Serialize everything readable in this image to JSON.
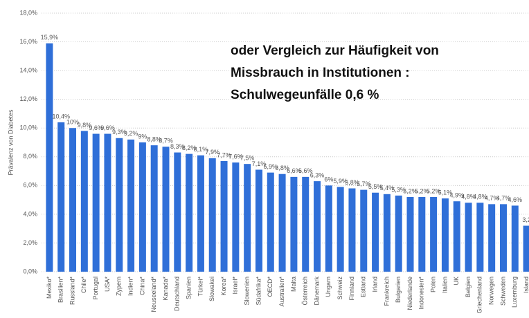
{
  "chart_data": {
    "type": "bar",
    "y_label": "Prävalenz von Diabetes",
    "annotation": [
      "oder Vergleich zur Häufigkeit von",
      "Missbrauch in Institutionen :",
      "Schulwegeunfälle 0,6 %"
    ],
    "categories": [
      "Mexiko*",
      "Brasilien*",
      "Russland*",
      "Chile*",
      "Portugal",
      "USA*",
      "Zypern",
      "Indien*",
      "China*",
      "Neuseeland*",
      "Kanada*",
      "Deutschland",
      "Spanien",
      "Türkei*",
      "Slowakei",
      "Korea*",
      "Israel*",
      "Slowenien",
      "Südafrika*",
      "OECD*",
      "Australien*",
      "Malta",
      "Österreich",
      "Dänemark",
      "Ungarn",
      "Schweiz",
      "Finnland",
      "Estland",
      "Irland",
      "Frankreich",
      "Bulgarien",
      "Niederlande",
      "Indonesien*",
      "Polen",
      "Italien",
      "UK",
      "Belgien",
      "Griechenland",
      "Norwegen",
      "Schweden",
      "Luxemburg",
      "Island"
    ],
    "values": [
      15.9,
      10.4,
      10,
      9.8,
      9.6,
      9.6,
      9.3,
      9.2,
      9,
      8.8,
      8.7,
      8.3,
      8.2,
      8.1,
      7.9,
      7.7,
      7.6,
      7.5,
      7.1,
      6.9,
      6.8,
      6.6,
      6.6,
      6.3,
      6,
      5.9,
      5.8,
      5.7,
      5.5,
      5.4,
      5.3,
      5.2,
      5.2,
      5.2,
      5.1,
      4.9,
      4.8,
      4.8,
      4.7,
      4.7,
      4.6,
      3.2
    ],
    "value_labels": [
      "15,9%",
      "10,4%",
      "10%",
      "9,8%",
      "9,6%",
      "9,6%",
      "9,3%",
      "9,2%",
      "9%",
      "8,8%",
      "8,7%",
      "8,3%",
      "8,2%",
      "8,1%",
      "7,9%",
      "7,7%",
      "7,6%",
      "7,5%",
      "7,1%",
      "6,9%",
      "6,8%",
      "6,6%",
      "6,6%",
      "6,3%",
      "6%",
      "5,9%",
      "5,8%",
      "5,7%",
      "5,5%",
      "5,4%",
      "5,3%",
      "5,2%",
      "5,2%",
      "5,2%",
      "5,1%",
      "4,9%",
      "4,8%",
      "4,8%",
      "4,7%",
      "4,7%",
      "4,6%",
      "3,2"
    ],
    "color": "#2f6fd8",
    "ylim": [
      0,
      18
    ],
    "yticks": [
      {
        "value": 0,
        "label": "0,0%"
      },
      {
        "value": 2,
        "label": "2,0%"
      },
      {
        "value": 4,
        "label": "4,0%"
      },
      {
        "value": 6,
        "label": "6,0%"
      },
      {
        "value": 8,
        "label": "8,0%"
      },
      {
        "value": 10,
        "label": "10,0%"
      },
      {
        "value": 12,
        "label": "12,0%"
      },
      {
        "value": 14,
        "label": "14,0%"
      },
      {
        "value": 16,
        "label": "16,0%"
      },
      {
        "value": 18,
        "label": "18,0%"
      }
    ],
    "grid": true
  }
}
